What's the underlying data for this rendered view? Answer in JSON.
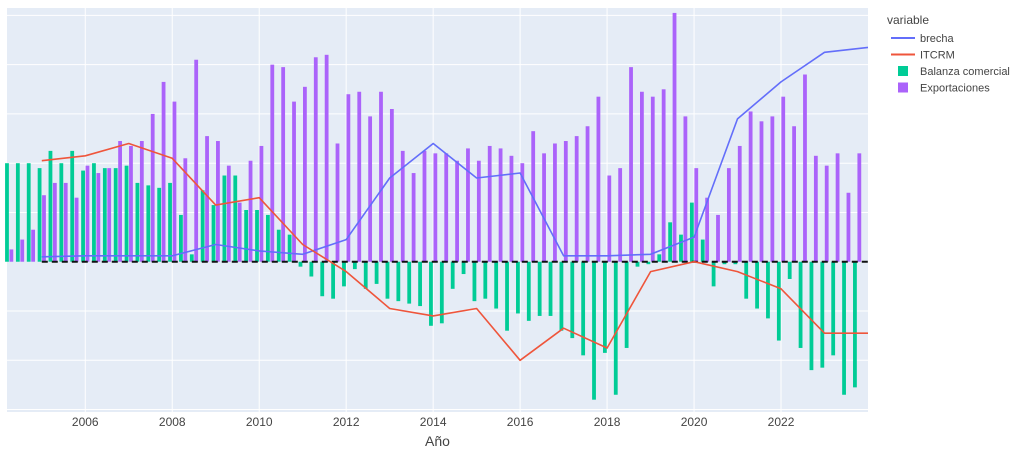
{
  "chart_data": {
    "type": "bar",
    "xlabel": "Año",
    "ylabel": "",
    "x_ticks": [
      "2006",
      "2008",
      "2010",
      "2012",
      "2014",
      "2016",
      "2018",
      "2020",
      "2022"
    ],
    "x_range": [
      2004.2,
      2024.0
    ],
    "y_range": [
      -3.05,
      5.15
    ],
    "grid": true,
    "show_y_tick_labels": false,
    "zero_line_dashed": true,
    "legend_title": "variable",
    "legend_position": "top-right",
    "colors": {
      "brecha": "#636efa",
      "ITCRM": "#ef553b",
      "Balanza comercial": "#00cc96",
      "Exportaciones": "#ab63fa",
      "plot_bg": "#e5ecf6",
      "grid": "#ffffff"
    },
    "bar_quarters": {
      "x": [
        2004.25,
        2004.5,
        2004.75,
        2005,
        2005.25,
        2005.5,
        2005.75,
        2006,
        2006.25,
        2006.5,
        2006.75,
        2007,
        2007.25,
        2007.5,
        2007.75,
        2008,
        2008.25,
        2008.5,
        2008.75,
        2009,
        2009.25,
        2009.5,
        2009.75,
        2010,
        2010.25,
        2010.5,
        2010.75,
        2011,
        2011.25,
        2011.5,
        2011.75,
        2012,
        2012.25,
        2012.5,
        2012.75,
        2013,
        2013.25,
        2013.5,
        2013.75,
        2014,
        2014.25,
        2014.5,
        2014.75,
        2015,
        2015.25,
        2015.5,
        2015.75,
        2016,
        2016.25,
        2016.5,
        2016.75,
        2017,
        2017.25,
        2017.5,
        2017.75,
        2018,
        2018.25,
        2018.5,
        2018.75,
        2019,
        2019.25,
        2019.5,
        2019.75,
        2020,
        2020.25,
        2020.5,
        2020.75,
        2021,
        2021.25,
        2021.5,
        2021.75,
        2022,
        2022.25,
        2022.5,
        2022.75,
        2023,
        2023.25,
        2023.5,
        2023.75
      ]
    },
    "series": [
      {
        "name": "Balanza comercial",
        "type": "bar",
        "values": [
          2.0,
          2.0,
          2.0,
          1.9,
          2.25,
          2.0,
          2.25,
          1.85,
          2.0,
          1.9,
          1.9,
          1.95,
          1.6,
          1.55,
          1.5,
          1.6,
          0.95,
          0.15,
          1.45,
          1.15,
          1.75,
          1.75,
          1.05,
          1.05,
          0.95,
          0.65,
          0.55,
          -0.1,
          -0.3,
          -0.7,
          -0.75,
          -0.5,
          -0.15,
          -0.55,
          -0.45,
          -0.75,
          -0.8,
          -0.85,
          -0.9,
          -1.3,
          -1.25,
          -0.55,
          -0.25,
          -0.8,
          -0.75,
          -0.95,
          -1.4,
          -1.05,
          -1.2,
          -1.1,
          -1.1,
          -1.4,
          -1.55,
          -1.9,
          -2.8,
          -1.85,
          -2.7,
          -1.75,
          -0.1,
          -0.05,
          0.15,
          0.8,
          0.55,
          1.2,
          0.45,
          -0.5,
          -0.05,
          -0.05,
          -0.75,
          -0.95,
          -1.15,
          -1.6,
          -0.35,
          -1.75,
          -2.2,
          -2.15,
          -1.9,
          -2.7,
          -2.55
        ]
      },
      {
        "name": "Exportaciones",
        "type": "bar",
        "values": [
          0.25,
          0.45,
          0.65,
          1.35,
          1.6,
          1.6,
          1.3,
          1.95,
          1.8,
          1.9,
          2.45,
          2.35,
          2.45,
          3.0,
          3.65,
          3.25,
          2.1,
          4.1,
          2.55,
          2.45,
          1.95,
          1.2,
          2.05,
          2.35,
          4.0,
          3.95,
          3.25,
          3.55,
          4.15,
          4.2,
          2.4,
          3.4,
          3.45,
          2.95,
          3.45,
          3.1,
          2.25,
          1.8,
          2.25,
          2.2,
          2.2,
          2.05,
          2.3,
          2.05,
          2.35,
          2.3,
          2.15,
          2.0,
          2.65,
          2.2,
          2.4,
          2.45,
          2.55,
          2.75,
          3.35,
          1.75,
          1.9,
          3.95,
          3.45,
          3.35,
          3.5,
          5.05,
          2.95,
          1.9,
          1.3,
          0.95,
          1.9,
          2.35,
          3.05,
          2.85,
          2.95,
          3.35,
          2.75,
          3.8,
          2.15,
          1.95,
          2.2,
          1.4,
          2.2
        ]
      },
      {
        "name": "brecha",
        "type": "line",
        "x": [
          2005,
          2006,
          2007,
          2008,
          2009,
          2010,
          2011,
          2012,
          2013,
          2014,
          2015,
          2016,
          2017,
          2018,
          2019,
          2020,
          2021,
          2022,
          2023,
          2024
        ],
        "values": [
          0.1,
          0.12,
          0.12,
          0.12,
          0.35,
          0.22,
          0.15,
          0.45,
          1.7,
          2.4,
          1.7,
          1.8,
          0.12,
          0.12,
          0.15,
          0.5,
          2.9,
          3.65,
          4.25,
          4.35
        ]
      },
      {
        "name": "ITCRM",
        "type": "line",
        "x": [
          2005,
          2006,
          2007,
          2008,
          2009,
          2010,
          2011,
          2012,
          2013,
          2014,
          2015,
          2016,
          2017,
          2018,
          2019,
          2020,
          2021,
          2022,
          2023,
          2024
        ],
        "values": [
          2.05,
          2.15,
          2.4,
          2.1,
          1.15,
          1.3,
          0.35,
          -0.2,
          -0.95,
          -1.1,
          -0.95,
          -2.0,
          -1.35,
          -1.75,
          -0.2,
          0.0,
          -0.2,
          -0.55,
          -1.45,
          -1.45
        ]
      }
    ]
  }
}
